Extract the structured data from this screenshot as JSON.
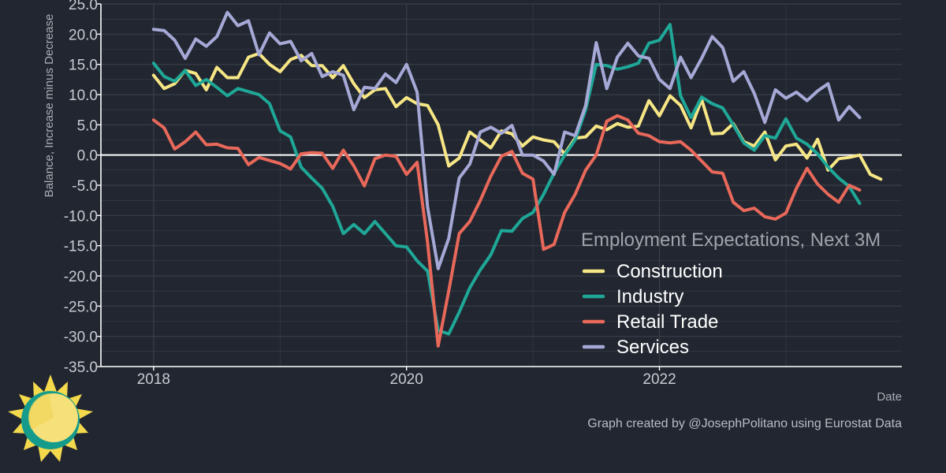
{
  "chart_data": {
    "type": "line",
    "ylabel": "Balance, Increase minus Decrease",
    "xlabel": "Date",
    "ylim": [
      -35,
      25
    ],
    "yticks": [
      "25.0",
      "20.0",
      "15.0",
      "10.0",
      "5.0",
      "0.0",
      "-5.0",
      "-10.0",
      "-15.0",
      "-20.0",
      "-25.0",
      "-30.0",
      "-35.0"
    ],
    "ytick_values": [
      25,
      20,
      15,
      10,
      5,
      0,
      -5,
      -10,
      -15,
      -20,
      -25,
      -30,
      -35
    ],
    "xlim": [
      "2017-08",
      "2023-12"
    ],
    "xticks": [
      "2018",
      "2020",
      "2022"
    ],
    "xtick_dates": [
      "2018-01",
      "2020-01",
      "2022-01"
    ],
    "grid": true,
    "zero_line": true,
    "legend": {
      "title": "Employment Expectations, Next 3M",
      "placement": "right-middle",
      "entries": [
        "Construction",
        "Industry",
        "Retail Trade",
        "Services"
      ]
    },
    "caption": "Graph created by @JosephPolitano using Eurostat Data",
    "start": "2018-01",
    "freq": "monthly",
    "series": [
      {
        "name": "Construction",
        "color": "#f7e685",
        "values": [
          13.2,
          11.0,
          11.8,
          14.0,
          13.5,
          10.8,
          14.5,
          12.8,
          12.8,
          16.2,
          16.8,
          15.0,
          13.8,
          15.8,
          16.5,
          14.8,
          14.8,
          12.8,
          14.8,
          11.8,
          9.5,
          10.8,
          11.0,
          8.0,
          9.5,
          8.5,
          8.2,
          5.0,
          -1.8,
          -0.5,
          3.8,
          2.5,
          1.2,
          4.0,
          3.5,
          1.5,
          3.0,
          2.5,
          2.2,
          0.2,
          2.8,
          3.0,
          4.8,
          4.2,
          5.2,
          4.6,
          4.8,
          9.0,
          6.5,
          9.8,
          8.2,
          4.5,
          9.2,
          3.5,
          3.6,
          5.2,
          2.2,
          1.5,
          3.8,
          -0.8,
          1.5,
          1.8,
          -0.5,
          2.6,
          -2.5,
          -0.6,
          -0.4,
          0.0,
          -3.2,
          -4.0
        ]
      },
      {
        "name": "Industry",
        "color": "#1fa797",
        "values": [
          15.2,
          13.0,
          12.2,
          14.0,
          11.5,
          12.5,
          11.2,
          9.8,
          11.0,
          10.5,
          10.0,
          8.5,
          4.0,
          3.0,
          -2.0,
          -3.8,
          -5.5,
          -8.5,
          -13.0,
          -11.5,
          -13.0,
          -11.0,
          -13.0,
          -15.0,
          -15.2,
          -17.5,
          -19.2,
          -29.0,
          -29.6,
          -26.0,
          -22.0,
          -19.0,
          -16.5,
          -12.5,
          -12.6,
          -10.5,
          -9.5,
          -6.5,
          -3.0,
          0.0,
          2.5,
          7.5,
          15.0,
          14.8,
          14.2,
          14.6,
          15.2,
          18.5,
          19.0,
          21.6,
          9.8,
          6.2,
          9.6,
          8.5,
          7.8,
          5.0,
          2.0,
          0.8,
          3.2,
          2.8,
          6.0,
          2.8,
          1.8,
          0.2,
          -2.0,
          -3.8,
          -5.2,
          -8.0
        ]
      },
      {
        "name": "Retail Trade",
        "color": "#e8685a",
        "values": [
          5.8,
          4.5,
          1.0,
          2.2,
          3.8,
          1.7,
          1.8,
          1.2,
          1.1,
          -1.6,
          -0.4,
          -0.9,
          -1.4,
          -2.3,
          0.2,
          0.4,
          0.3,
          -2.2,
          0.8,
          -1.8,
          -5.1,
          -0.6,
          0.0,
          -0.2,
          -3.2,
          -1.2,
          -14.5,
          -31.6,
          -22.5,
          -13.0,
          -11.0,
          -7.5,
          -3.5,
          -0.2,
          0.6,
          -3.0,
          -4.0,
          -15.6,
          -14.8,
          -9.5,
          -6.5,
          -2.5,
          0.0,
          5.6,
          6.5,
          5.8,
          3.6,
          3.2,
          2.2,
          2.0,
          2.2,
          0.8,
          -1.0,
          -2.8,
          -3.0,
          -7.8,
          -9.2,
          -8.8,
          -10.2,
          -10.6,
          -9.6,
          -5.5,
          -2.2,
          -4.8,
          -6.5,
          -7.8,
          -5.0,
          -5.8
        ]
      },
      {
        "name": "Services",
        "color": "#a6a8d6",
        "values": [
          20.8,
          20.6,
          19.0,
          16.0,
          19.2,
          18.0,
          19.6,
          23.6,
          21.4,
          22.2,
          16.6,
          20.2,
          18.4,
          18.8,
          15.6,
          16.8,
          13.0,
          13.8,
          13.2,
          7.5,
          11.2,
          11.0,
          13.4,
          12.0,
          15.0,
          10.4,
          -8.6,
          -18.8,
          -13.8,
          -3.8,
          -1.5,
          3.8,
          4.6,
          3.6,
          4.9,
          0.0,
          0.0,
          -1.0,
          -3.2,
          3.8,
          3.2,
          8.2,
          18.6,
          11.0,
          16.2,
          18.5,
          16.4,
          16.0,
          12.5,
          11.0,
          16.2,
          12.8,
          16.0,
          19.6,
          17.8,
          12.2,
          13.8,
          10.2,
          5.4,
          10.8,
          9.4,
          10.4,
          9.0,
          10.6,
          11.8,
          5.8,
          8.0,
          6.2
        ]
      }
    ]
  },
  "colors": {
    "background": "#212630",
    "grid": "#3a4049",
    "zero_line": "#ffffff",
    "axis": "#ffffff"
  },
  "logo": {
    "name": "sun-logo"
  }
}
